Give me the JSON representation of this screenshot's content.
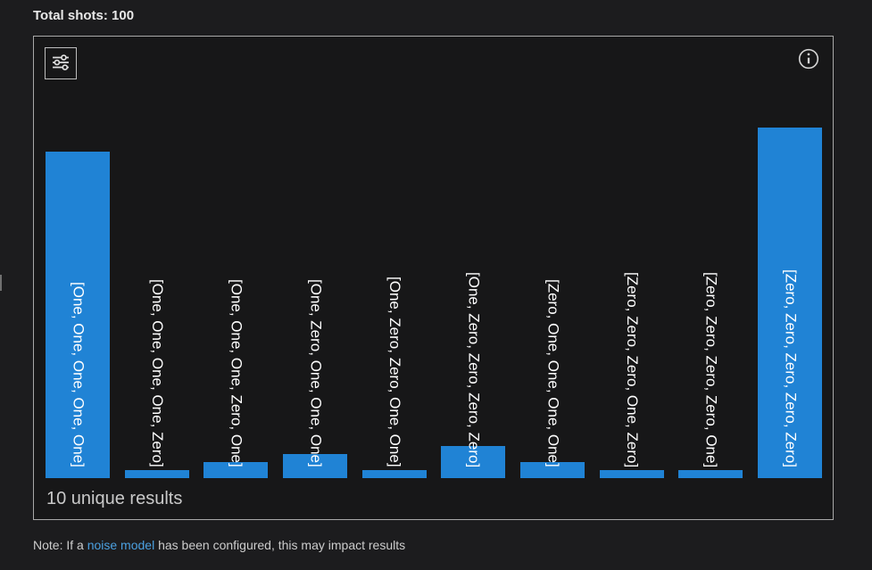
{
  "header": {
    "total_shots": "Total shots: 100"
  },
  "panel": {
    "unique_results": "10 unique results"
  },
  "note": {
    "prefix": "Note: If a ",
    "link": "noise model",
    "suffix": " has been configured, this may impact results"
  },
  "colors": {
    "bar": "#2083d5",
    "link": "#4ba0e0",
    "background": "#1c1c1e",
    "panel_background": "#171718",
    "border": "#a8a8a8"
  },
  "chart_data": {
    "type": "bar",
    "title": "Total shots: 100",
    "total_shots": 100,
    "footer": "10 unique results",
    "orientation": "vertical",
    "grid": false,
    "legend": false,
    "xlabel": "",
    "ylabel": "",
    "ylim": [
      0,
      44
    ],
    "categories": [
      "[One, One, One, One, One]",
      "[One, One, One, One, Zero]",
      "[One, One, One, Zero, One]",
      "[One, Zero, One, One, One]",
      "[One, Zero, Zero, One, One]",
      "[One, Zero, Zero, Zero, Zero]",
      "[Zero, One, One, One, One]",
      "[Zero, Zero, Zero, One, Zero]",
      "[Zero, Zero, Zero, Zero, One]",
      "[Zero, Zero, Zero, Zero, Zero]"
    ],
    "values": [
      41,
      1,
      2,
      3,
      1,
      4,
      2,
      1,
      1,
      44
    ]
  }
}
